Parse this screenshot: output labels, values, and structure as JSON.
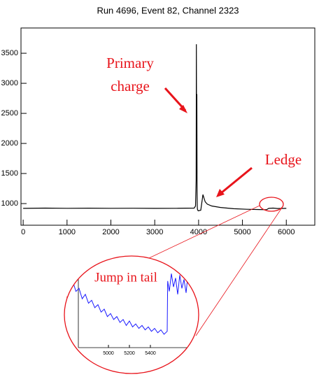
{
  "chart_data": [
    {
      "type": "line",
      "title": "Run 4696, Event 82, Channel 2323",
      "x": [
        0,
        500,
        1000,
        1500,
        2000,
        2500,
        3000,
        3500,
        3900,
        3930,
        3945,
        3950,
        3955,
        3960,
        3965,
        3970,
        3975,
        3990,
        4050,
        4100,
        4120,
        4150,
        4200,
        4300,
        4500,
        4800,
        5100,
        5400,
        5550,
        5600,
        5700,
        5800,
        6000
      ],
      "series": [
        {
          "name": "waveform",
          "color": "#000000",
          "values": [
            920,
            925,
            922,
            924,
            921,
            923,
            920,
            922,
            925,
            960,
            1400,
            3650,
            1500,
            2820,
            1200,
            950,
            900,
            880,
            890,
            1150,
            1100,
            1030,
            990,
            960,
            935,
            915,
            905,
            900,
            898,
            920,
            925,
            918,
            920
          ]
        }
      ],
      "xlim": [
        -50,
        6650
      ],
      "xticks": [
        0,
        1000,
        2000,
        3000,
        4000,
        5000,
        6000
      ],
      "ylim": [
        640,
        3920
      ],
      "yticks": [
        1000,
        1500,
        2000,
        2500,
        3000,
        3500
      ],
      "annotations": [
        {
          "lines": [
            "Primary",
            "charge"
          ],
          "color": "#e8141b"
        },
        {
          "lines": [
            "Ledge"
          ],
          "color": "#e8141b"
        }
      ]
    },
    {
      "type": "line",
      "title": "Jump in tail",
      "x": [
        4600,
        4630,
        4660,
        4690,
        4720,
        4750,
        4780,
        4810,
        4840,
        4870,
        4900,
        4930,
        4960,
        4990,
        5020,
        5050,
        5080,
        5110,
        5140,
        5170,
        5200,
        5230,
        5260,
        5290,
        5320,
        5350,
        5380,
        5410,
        5440,
        5470,
        5500,
        5530,
        5560,
        5565,
        5580,
        5600,
        5620,
        5640,
        5660,
        5680,
        5700,
        5720,
        5740,
        5760,
        5780,
        5800,
        5820,
        5840,
        5860
      ],
      "series": [
        {
          "name": "tail",
          "color": "#1a1aff",
          "values": [
            929,
            922,
            925,
            918,
            920,
            913,
            916,
            910,
            912,
            907,
            909,
            904,
            906,
            901,
            903,
            899,
            901,
            897,
            899,
            895,
            898,
            894,
            896,
            893,
            895,
            892,
            894,
            891,
            893,
            890,
            892,
            889,
            891,
            925,
            918,
            930,
            921,
            927,
            916,
            929,
            920,
            926,
            917,
            931,
            922,
            925,
            919,
            928,
            921
          ]
        }
      ],
      "xlim": [
        4573,
        5867
      ],
      "xticks": [
        5000,
        5200,
        5400
      ],
      "ylim": [
        880,
        940
      ]
    }
  ]
}
